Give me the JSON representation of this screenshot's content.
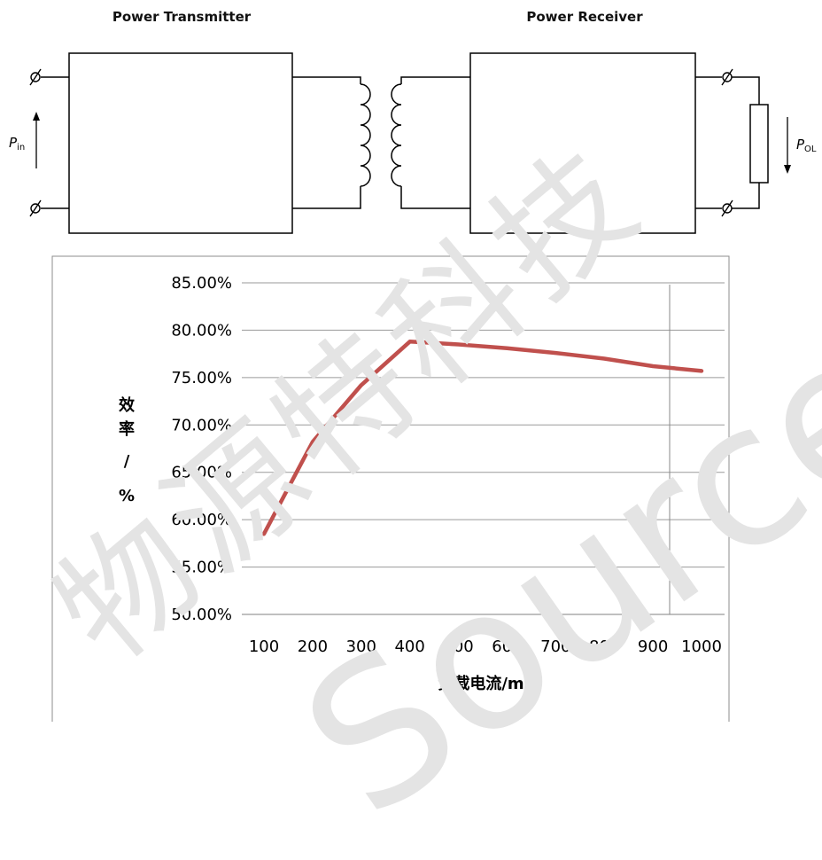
{
  "diagram": {
    "transmitter_label": "Power Transmitter",
    "receiver_label": "Power Receiver",
    "input_power_symbol": "P",
    "input_power_sub": "in",
    "output_power_symbol": "P",
    "output_power_sub": "OL"
  },
  "watermark": {
    "cn": "物源特科技",
    "en": "SourceT"
  },
  "chart_data": {
    "type": "line",
    "categories": [
      "100",
      "200",
      "300",
      "400",
      "500",
      "600",
      "700",
      "800",
      "900",
      "1000"
    ],
    "series": [
      {
        "values": [
          58.5,
          68.2,
          74.2,
          78.8,
          78.5,
          78.1,
          77.6,
          77.0,
          76.2,
          75.7
        ]
      }
    ],
    "y_ticks": [
      "85.00%",
      "80.00%",
      "75.00%",
      "70.00%",
      "65.00%",
      "60.00%",
      "55.00%",
      "50.00%"
    ],
    "ylim": [
      50,
      85
    ],
    "ylabel_chars": [
      "效",
      "率",
      "/",
      "%"
    ],
    "xlabel": "负载电流/mA",
    "line_color": "#c0504d",
    "grid": true
  }
}
